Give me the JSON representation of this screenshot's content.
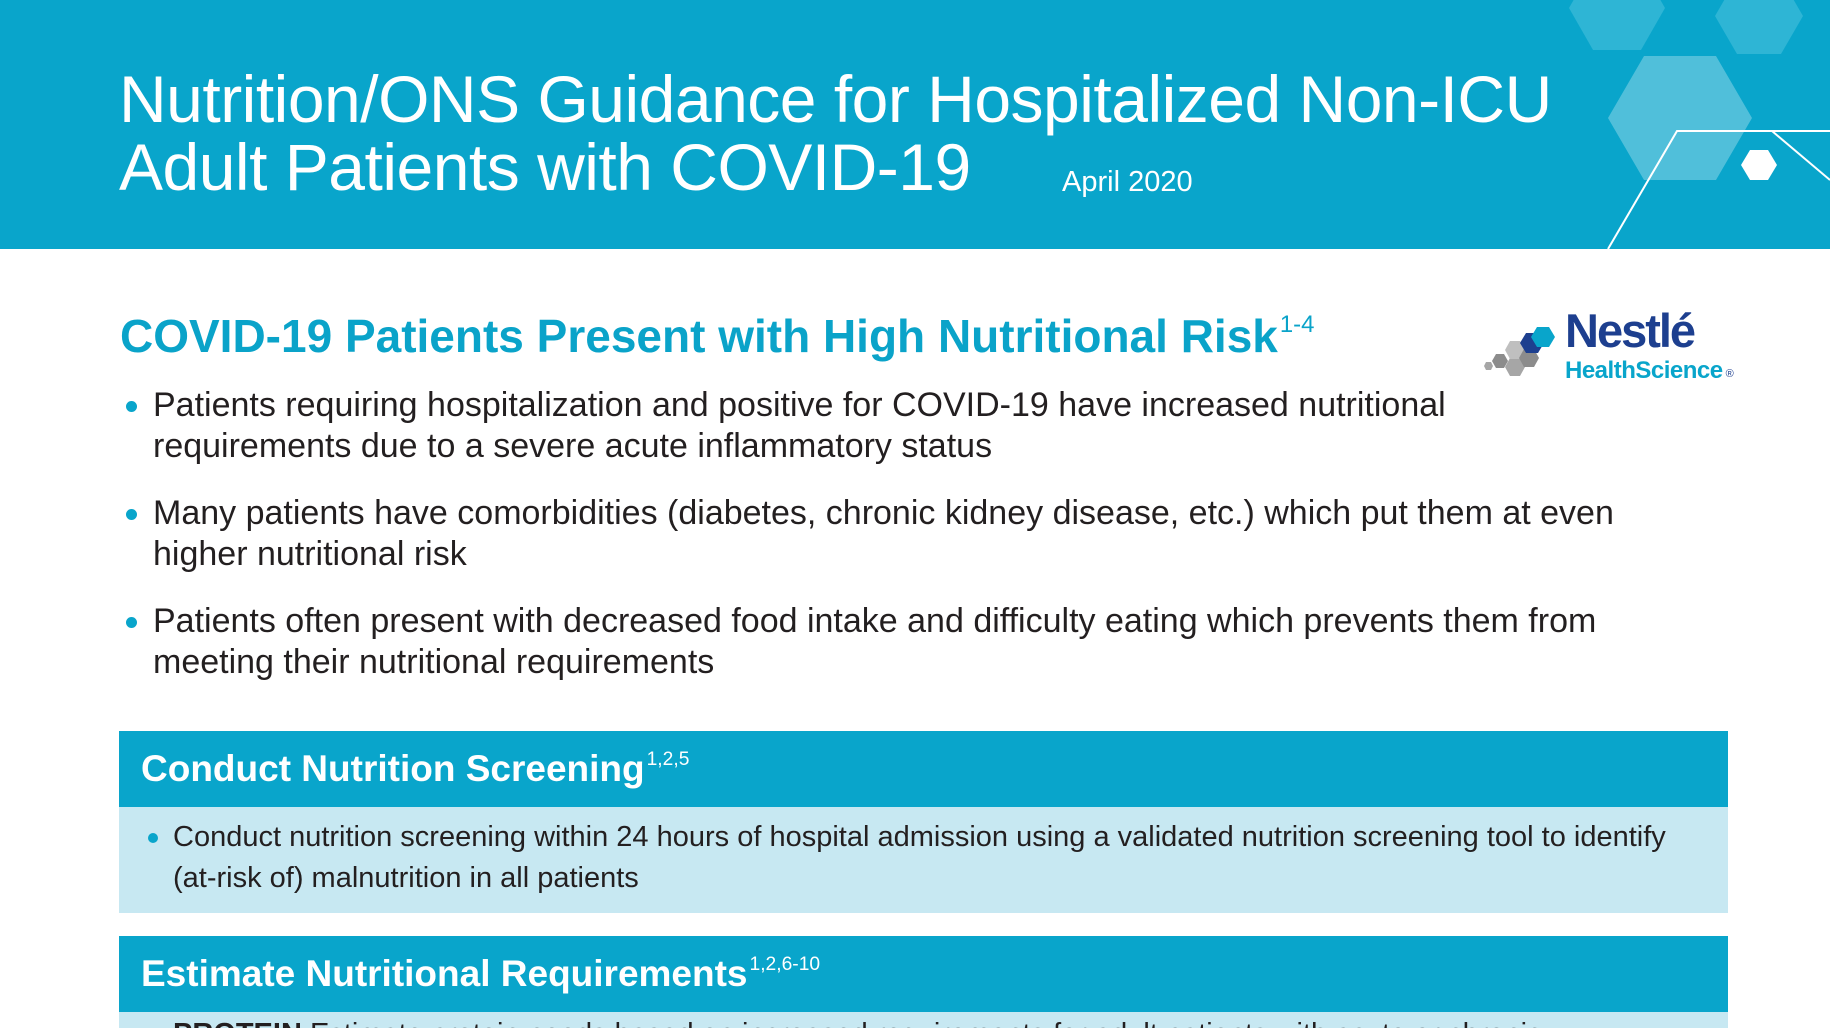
{
  "header": {
    "title_line1": "Nutrition/ONS Guidance for Hospitalized Non-ICU",
    "title_line2": "Adult Patients with COVID-19",
    "date": "April 2020",
    "band_color": "#09a5cb"
  },
  "logo": {
    "brand": "Nestlé",
    "subbrand": "HealthScience",
    "registered_mark": "®"
  },
  "risk_section": {
    "title": "COVID-19 Patients Present with High Nutritional Risk",
    "title_refs": "1-4",
    "bullets": [
      "Patients requiring hospitalization and positive for COVID-19 have increased nutritional requirements due to a severe acute inflammatory status",
      "Many patients have comorbidities (diabetes, chronic kidney disease, etc.) which put them at even higher nutritional risk",
      "Patients often present with decreased food intake and difficulty eating which prevents them from meeting their nutritional requirements"
    ]
  },
  "screening_section": {
    "title": "Conduct Nutrition Screening",
    "title_refs": "1,2,5",
    "bullets": [
      "Conduct nutrition screening within 24 hours of hospital admission using a validated nutrition screening tool to identify (at-risk of) malnutrition in all patients"
    ]
  },
  "requirements_section": {
    "title": "Estimate Nutritional Requirements",
    "title_refs": "1,2,6-10",
    "partial_bullet_label": "PROTEIN",
    "partial_bullet_text": "Estimate protein needs based on increased requirements for adult patients with acute or chronic"
  },
  "colors": {
    "accent": "#09a5cb",
    "light_panel": "#c7e8f2",
    "body_text": "#231f20",
    "logo_navy": "#1d3f8f"
  }
}
